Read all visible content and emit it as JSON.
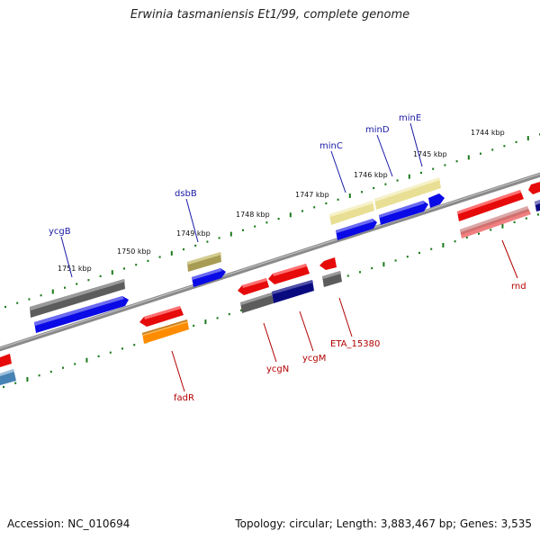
{
  "title": "Erwinia tasmaniensis Et1/99, complete genome",
  "footer": {
    "accession": "Accession: NC_010694",
    "summary": "Topology: circular; Length: 3,883,467 bp; Genes: 3,535"
  },
  "scale_labels": [
    "1751 kbp",
    "1750 kbp",
    "1749 kbp",
    "1748 kbp",
    "1747 kbp",
    "1746 kbp",
    "1745 kbp",
    "1744 kbp"
  ],
  "genes_top": [
    "ycgB",
    "dsbB",
    "minC",
    "minD",
    "minE"
  ],
  "genes_bottom": [
    "fadR",
    "ycgN",
    "ycgM",
    "ETA_15380",
    "rnd"
  ],
  "colors": {
    "backbone": "#7a7a7a",
    "ticks": "#1a7a1a",
    "gray": "#5a5a5a",
    "blue": "#0a0ae6",
    "red": "#e60a0a",
    "khaki": "#b0a860",
    "paleyellow": "#ece6a0",
    "orange": "#ff8c00",
    "navy": "#0a0a80",
    "pink": "#f08080",
    "steelblue": "#4682b4"
  }
}
